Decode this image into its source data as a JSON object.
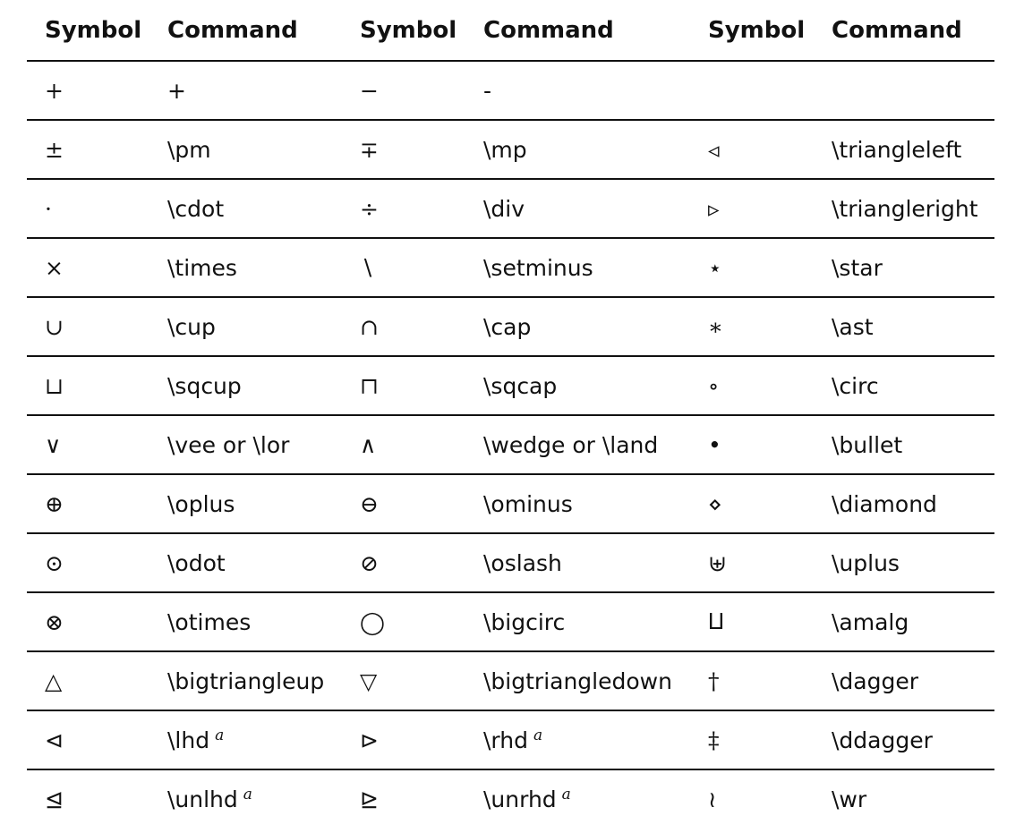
{
  "table": {
    "headers": [
      "Symbol",
      "Command",
      "Symbol",
      "Command",
      "Symbol",
      "Command"
    ],
    "rows": [
      [
        {
          "symbol": "+",
          "command": "+"
        },
        {
          "symbol": "−",
          "command": "-"
        },
        {
          "symbol": "",
          "command": ""
        }
      ],
      [
        {
          "symbol": "±",
          "command": "\\pm"
        },
        {
          "symbol": "∓",
          "command": "\\mp"
        },
        {
          "symbol": "◃",
          "command": "\\triangleleft"
        }
      ],
      [
        {
          "symbol": "·",
          "command": "\\cdot"
        },
        {
          "symbol": "÷",
          "command": "\\div"
        },
        {
          "symbol": "▹",
          "command": "\\triangleright"
        }
      ],
      [
        {
          "symbol": "×",
          "command": "\\times"
        },
        {
          "symbol": "∖",
          "command": "\\setminus"
        },
        {
          "symbol": "⋆",
          "command": "\\star"
        }
      ],
      [
        {
          "symbol": "∪",
          "command": "\\cup"
        },
        {
          "symbol": "∩",
          "command": "\\cap"
        },
        {
          "symbol": "∗",
          "command": "\\ast"
        }
      ],
      [
        {
          "symbol": "⊔",
          "command": "\\sqcup"
        },
        {
          "symbol": "⊓",
          "command": "\\sqcap"
        },
        {
          "symbol": "∘",
          "command": "\\circ"
        }
      ],
      [
        {
          "symbol": "∨",
          "command": "\\vee or \\lor"
        },
        {
          "symbol": "∧",
          "command": "\\wedge or \\land"
        },
        {
          "symbol": "•",
          "command": "\\bullet"
        }
      ],
      [
        {
          "symbol": "⊕",
          "command": "\\oplus"
        },
        {
          "symbol": "⊖",
          "command": "\\ominus"
        },
        {
          "symbol": "⋄",
          "command": "\\diamond"
        }
      ],
      [
        {
          "symbol": "⊙",
          "command": "\\odot"
        },
        {
          "symbol": "⊘",
          "command": "\\oslash"
        },
        {
          "symbol": "⊎",
          "command": "\\uplus"
        }
      ],
      [
        {
          "symbol": "⊗",
          "command": "\\otimes"
        },
        {
          "symbol": "◯",
          "command": "\\bigcirc"
        },
        {
          "symbol": "⨿",
          "command": "\\amalg"
        }
      ],
      [
        {
          "symbol": "△",
          "command": "\\bigtriangleup"
        },
        {
          "symbol": "▽",
          "command": "\\bigtriangledown"
        },
        {
          "symbol": "†",
          "command": "\\dagger"
        }
      ],
      [
        {
          "symbol": "⊲",
          "command": "\\lhd",
          "note": "a"
        },
        {
          "symbol": "⊳",
          "command": "\\rhd",
          "note": "a"
        },
        {
          "symbol": "‡",
          "command": "\\ddagger"
        }
      ],
      [
        {
          "symbol": "⊴",
          "command": "\\unlhd",
          "note": "a"
        },
        {
          "symbol": "⊵",
          "command": "\\unrhd",
          "note": "a"
        },
        {
          "symbol": "≀",
          "command": "\\wr"
        }
      ]
    ]
  }
}
